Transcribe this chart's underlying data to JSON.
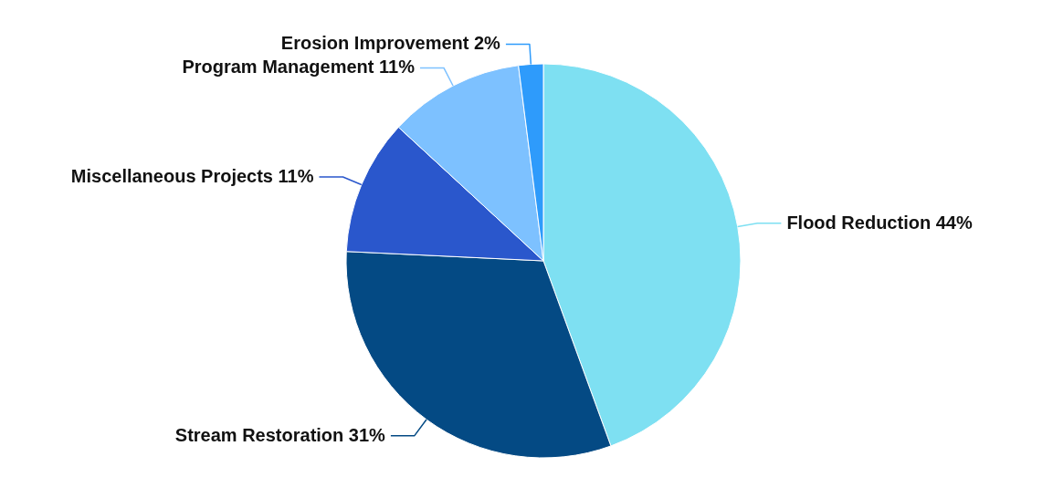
{
  "chart_data": {
    "type": "pie",
    "categories": [
      "Flood Reduction",
      "Stream Restoration",
      "Miscellaneous Projects",
      "Program Management",
      "Erosion Improvement"
    ],
    "values": [
      44,
      31,
      11,
      11,
      2
    ],
    "value_labels": [
      "44%",
      "31%",
      "11%",
      "11%",
      "2%"
    ],
    "colors": [
      "#7ee0f2",
      "#044a84",
      "#2a57cc",
      "#7dc1ff",
      "#2e9bfb"
    ]
  }
}
